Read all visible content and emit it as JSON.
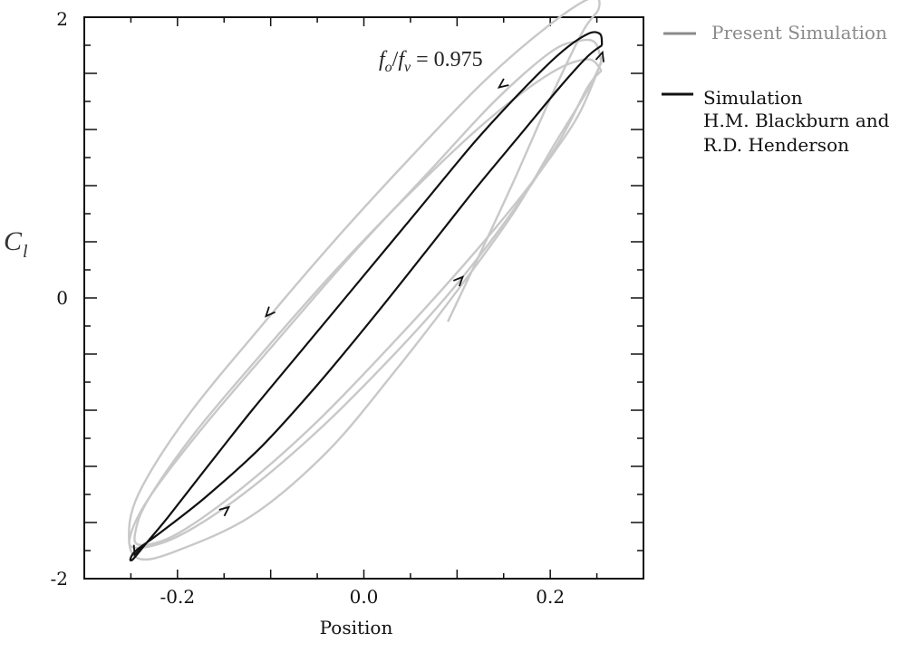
{
  "chart_data": {
    "type": "line",
    "title": "",
    "xlabel": "Position",
    "ylabel": "C_l",
    "ylabel_main": "C",
    "ylabel_sub": "l",
    "xlim": [
      -0.3,
      0.3
    ],
    "ylim": [
      -2,
      2
    ],
    "xticks": [
      -0.2,
      0.0,
      0.2
    ],
    "xtick_labels": [
      "-0.2",
      "0.0",
      "0.2"
    ],
    "yticks": [
      -2,
      0,
      2
    ],
    "ytick_labels": [
      "-2",
      "0",
      "2"
    ],
    "grid": false,
    "legend_position": "right-outside-top",
    "annotation": {
      "text": "f_o/f_v = 0.975",
      "f1": "f",
      "s1": "o",
      "slash": "/",
      "f2": "f",
      "s2": "v",
      "eq": " = 0.975",
      "x": 0.03,
      "y": 1.7
    },
    "series": [
      {
        "name": "Present Simulation",
        "color": "#c8c8c8",
        "legend_color": "#8a8a8a",
        "passes": [
          {
            "x": [
              0.09,
              0.12,
              0.16,
              0.2,
              0.235,
              0.252,
              0.245,
              0.2,
              0.13,
              0.05,
              -0.03,
              -0.11,
              -0.19,
              -0.242,
              -0.252,
              -0.24,
              -0.2,
              -0.12,
              -0.04,
              0.03,
              0.1,
              0.16,
              0.205,
              0.24,
              0.255
            ],
            "y": [
              -0.17,
              0.25,
              0.82,
              1.42,
              1.9,
              2.06,
              2.14,
              1.95,
              1.55,
              1.0,
              0.42,
              -0.2,
              -0.85,
              -1.4,
              -1.72,
              -1.86,
              -1.8,
              -1.55,
              -1.1,
              -0.55,
              0.05,
              0.6,
              1.1,
              1.48,
              1.68
            ]
          },
          {
            "x": [
              0.255,
              0.248,
              0.23,
              0.2,
              0.14,
              0.07,
              -0.01,
              -0.09,
              -0.17,
              -0.228,
              -0.25,
              -0.245,
              -0.2,
              -0.13,
              -0.05,
              0.03,
              0.1,
              0.16,
              0.21,
              0.24,
              0.255
            ],
            "y": [
              1.68,
              1.82,
              1.83,
              1.75,
              1.4,
              0.9,
              0.33,
              -0.28,
              -0.9,
              -1.4,
              -1.68,
              -1.78,
              -1.7,
              -1.4,
              -0.95,
              -0.42,
              0.1,
              0.62,
              1.12,
              1.5,
              1.62
            ]
          },
          {
            "x": [
              0.255,
              0.24,
              0.2,
              0.13,
              0.05,
              -0.03,
              -0.11,
              -0.18,
              -0.23,
              -0.245,
              -0.24,
              -0.2,
              -0.13,
              -0.05,
              0.03,
              0.1,
              0.16,
              0.2,
              0.23,
              0.25,
              0.256
            ],
            "y": [
              1.62,
              1.7,
              1.6,
              1.25,
              0.75,
              0.2,
              -0.4,
              -0.95,
              -1.42,
              -1.66,
              -1.76,
              -1.68,
              -1.35,
              -0.88,
              -0.33,
              0.18,
              0.65,
              1.0,
              1.3,
              1.6,
              1.72
            ]
          }
        ]
      },
      {
        "name": "Simulation H.M. Blackburn and R.D. Henderson",
        "legend_lines": [
          "Simulation",
          "H.M. Blackburn and",
          "R.D. Henderson"
        ],
        "color": "#111111",
        "x": [
          0.2555,
          0.2535,
          0.24,
          0.21,
          0.17,
          0.12,
          0.06,
          0.0,
          -0.06,
          -0.12,
          -0.17,
          -0.21,
          -0.235,
          -0.2475,
          -0.2505,
          -0.2445,
          -0.22,
          -0.17,
          -0.11,
          -0.05,
          0.01,
          0.07,
          0.12,
          0.17,
          0.21,
          0.24,
          0.2555
        ],
        "y": [
          1.8,
          1.88,
          1.88,
          1.74,
          1.48,
          1.12,
          0.64,
          0.16,
          -0.32,
          -0.8,
          -1.22,
          -1.56,
          -1.76,
          -1.86,
          -1.86,
          -1.8,
          -1.68,
          -1.42,
          -1.06,
          -0.62,
          -0.14,
          0.36,
          0.78,
          1.18,
          1.5,
          1.72,
          1.8
        ]
      }
    ]
  }
}
